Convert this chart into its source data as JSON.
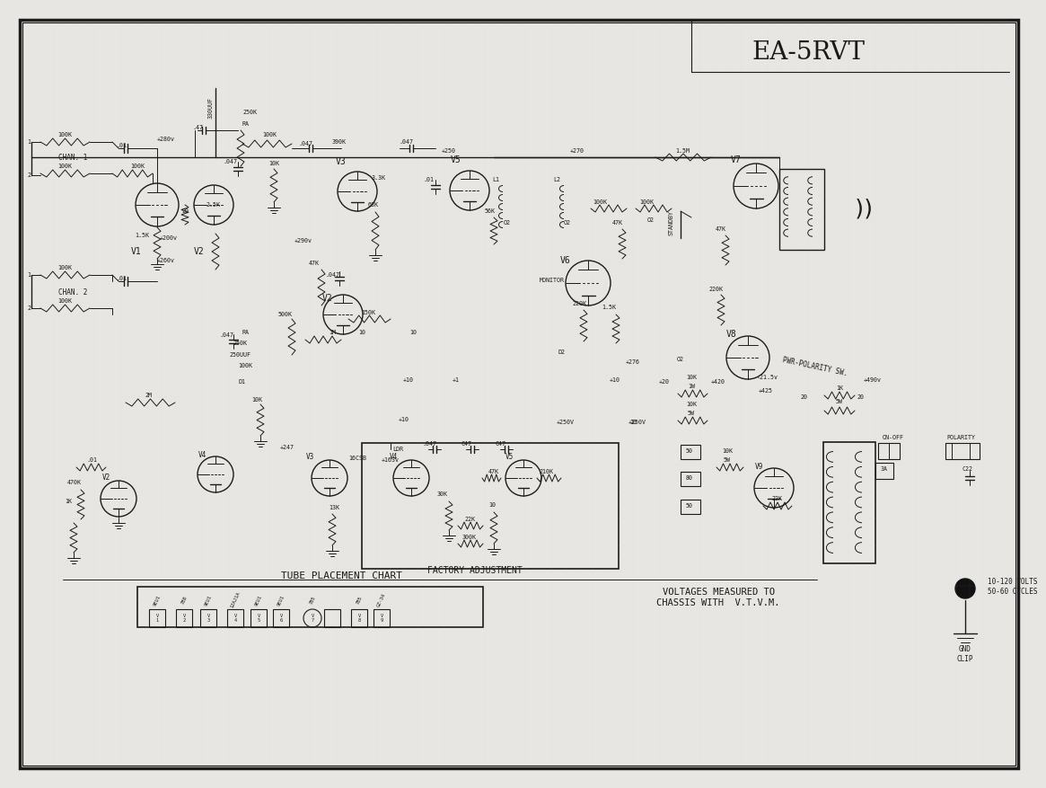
{
  "title": "EA-5RVT",
  "bg_color": "#e8e6e2",
  "paper_color": "#eceae6",
  "border_color": "#1a1a1a",
  "line_color": "#1a1a1a",
  "text_color": "#1a1a1a",
  "title_fontsize": 20,
  "label_fontsize": 7,
  "small_fontsize": 5.5,
  "tiny_fontsize": 4.8,
  "tube_placement_title": "TUBE PLACEMENT CHART",
  "factory_adjustment": "FACTORY ADJUSTMENT",
  "voltages_text": "VOLTAGES MEASURED TO\nCHASSIS WITH  V.T.V.M.",
  "power_text": "10-120 VOLTS\n50-60 CYCLES",
  "gnd_text": "GND\nCLIP",
  "on_off_text": "ON-OFF",
  "polarity_text": "POLARITY",
  "pwr_polarity_text": "PWR-POLARITY SW.",
  "monitor_text": "MONITOR",
  "standby_text": "STANDBY",
  "chan1_text": "CHAN. 1",
  "chan2_text": "CHAN. 2"
}
